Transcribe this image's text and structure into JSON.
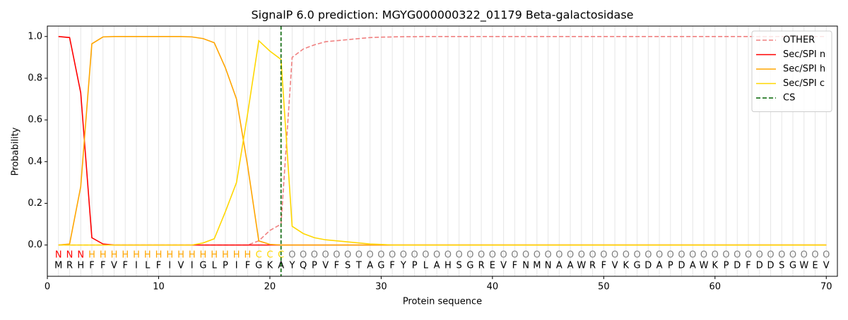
{
  "chart_data": {
    "type": "line",
    "title": "SignalP 6.0 prediction: MGYG000000322_01179 Beta-galactosidase",
    "xlabel": "Protein sequence",
    "ylabel": "Probability",
    "x": [
      1,
      2,
      3,
      4,
      5,
      6,
      7,
      8,
      9,
      10,
      11,
      12,
      13,
      14,
      15,
      16,
      17,
      18,
      19,
      20,
      21,
      22,
      23,
      24,
      25,
      26,
      27,
      28,
      29,
      30,
      31,
      32,
      33,
      34,
      35,
      36,
      37,
      38,
      39,
      40,
      41,
      42,
      43,
      44,
      45,
      46,
      47,
      48,
      49,
      50,
      51,
      52,
      53,
      54,
      55,
      56,
      57,
      58,
      59,
      60,
      61,
      62,
      63,
      64,
      65,
      66,
      67,
      68,
      69,
      70
    ],
    "residues": [
      "M",
      "R",
      "H",
      "F",
      "F",
      "V",
      "F",
      "I",
      "L",
      "F",
      "I",
      "V",
      "I",
      "G",
      "L",
      "P",
      "I",
      "F",
      "G",
      "K",
      "A",
      "Y",
      "Q",
      "P",
      "V",
      "F",
      "S",
      "T",
      "A",
      "G",
      "F",
      "Y",
      "P",
      "L",
      "A",
      "H",
      "S",
      "G",
      "R",
      "E",
      "V",
      "F",
      "N",
      "M",
      "N",
      "A",
      "A",
      "W",
      "R",
      "F",
      "V",
      "K",
      "G",
      "D",
      "A",
      "P",
      "D",
      "A",
      "W",
      "K",
      "P",
      "D",
      "F",
      "D",
      "D",
      "S",
      "G",
      "W",
      "E",
      "V"
    ],
    "labels": [
      "N",
      "N",
      "N",
      "H",
      "H",
      "H",
      "H",
      "H",
      "H",
      "H",
      "H",
      "H",
      "H",
      "H",
      "H",
      "H",
      "H",
      "H",
      "C",
      "C",
      "C",
      "O",
      "O",
      "O",
      "O",
      "O",
      "O",
      "O",
      "O",
      "O",
      "O",
      "O",
      "O",
      "O",
      "O",
      "O",
      "O",
      "O",
      "O",
      "O",
      "O",
      "O",
      "O",
      "O",
      "O",
      "O",
      "O",
      "O",
      "O",
      "O",
      "O",
      "O",
      "O",
      "O",
      "O",
      "O",
      "O",
      "O",
      "O",
      "O",
      "O",
      "O",
      "O",
      "O",
      "O",
      "O",
      "O",
      "O",
      "O",
      "O"
    ],
    "label_colors": {
      "N": "red",
      "H": "orange",
      "C": "gold",
      "O": "gray"
    },
    "series": [
      {
        "name": "OTHER",
        "color": "#f08080",
        "dashed": true,
        "values": [
          0,
          0,
          0,
          0,
          0,
          0,
          0,
          0,
          0,
          0,
          0,
          0,
          0,
          0,
          0,
          0,
          0,
          0,
          0.02,
          0.07,
          0.1,
          0.9,
          0.94,
          0.96,
          0.975,
          0.98,
          0.985,
          0.99,
          0.995,
          0.997,
          0.998,
          0.999,
          0.999,
          1,
          1,
          1,
          1,
          1,
          1,
          1,
          1,
          1,
          1,
          1,
          1,
          1,
          1,
          1,
          1,
          1,
          1,
          1,
          1,
          1,
          1,
          1,
          1,
          1,
          1,
          1,
          1,
          1,
          1,
          1,
          1,
          1,
          1,
          1,
          1,
          1
        ]
      },
      {
        "name": "Sec/SPI n",
        "color": "red",
        "dashed": false,
        "values": [
          1.0,
          0.995,
          0.73,
          0.035,
          0.005,
          0,
          0,
          0,
          0,
          0,
          0,
          0,
          0,
          0,
          0,
          0,
          0,
          0,
          0,
          0,
          0,
          0,
          0,
          0,
          0,
          0,
          0,
          0,
          0,
          0,
          0,
          0,
          0,
          0,
          0,
          0,
          0,
          0,
          0,
          0,
          0,
          0,
          0,
          0,
          0,
          0,
          0,
          0,
          0,
          0,
          0,
          0,
          0,
          0,
          0,
          0,
          0,
          0,
          0,
          0,
          0,
          0,
          0,
          0,
          0,
          0,
          0,
          0,
          0,
          0
        ]
      },
      {
        "name": "Sec/SPI h",
        "color": "orange",
        "dashed": false,
        "values": [
          0,
          0.005,
          0.28,
          0.965,
          0.998,
          1,
          1,
          1,
          1,
          1,
          1,
          1,
          0.998,
          0.99,
          0.97,
          0.85,
          0.7,
          0.38,
          0.02,
          0.003,
          0,
          0,
          0,
          0,
          0,
          0,
          0,
          0,
          0,
          0,
          0,
          0,
          0,
          0,
          0,
          0,
          0,
          0,
          0,
          0,
          0,
          0,
          0,
          0,
          0,
          0,
          0,
          0,
          0,
          0,
          0,
          0,
          0,
          0,
          0,
          0,
          0,
          0,
          0,
          0,
          0,
          0,
          0,
          0,
          0,
          0,
          0,
          0,
          0,
          0
        ]
      },
      {
        "name": "Sec/SPI c",
        "color": "gold",
        "dashed": false,
        "values": [
          0,
          0,
          0,
          0,
          0,
          0,
          0,
          0,
          0,
          0,
          0,
          0,
          0,
          0.01,
          0.03,
          0.16,
          0.3,
          0.63,
          0.98,
          0.93,
          0.89,
          0.09,
          0.055,
          0.035,
          0.025,
          0.02,
          0.015,
          0.01,
          0.005,
          0.003,
          0,
          0,
          0,
          0,
          0,
          0,
          0,
          0,
          0,
          0,
          0,
          0,
          0,
          0,
          0,
          0,
          0,
          0,
          0,
          0,
          0,
          0,
          0,
          0,
          0,
          0,
          0,
          0,
          0,
          0,
          0,
          0,
          0,
          0,
          0,
          0,
          0,
          0,
          0,
          0
        ]
      }
    ],
    "cs": {
      "name": "CS",
      "x": 21,
      "color": "darkgreen"
    },
    "xlim": [
      0,
      71
    ],
    "ylim": [
      -0.15,
      1.05
    ],
    "xticks": [
      0,
      10,
      20,
      30,
      40,
      50,
      60,
      70
    ],
    "yticks": [
      {
        "value": 0,
        "label": "0.0"
      },
      0.2,
      0.4,
      0.6,
      0.8,
      {
        "value": 1,
        "label": "1.0"
      }
    ],
    "legend": "upper right"
  }
}
